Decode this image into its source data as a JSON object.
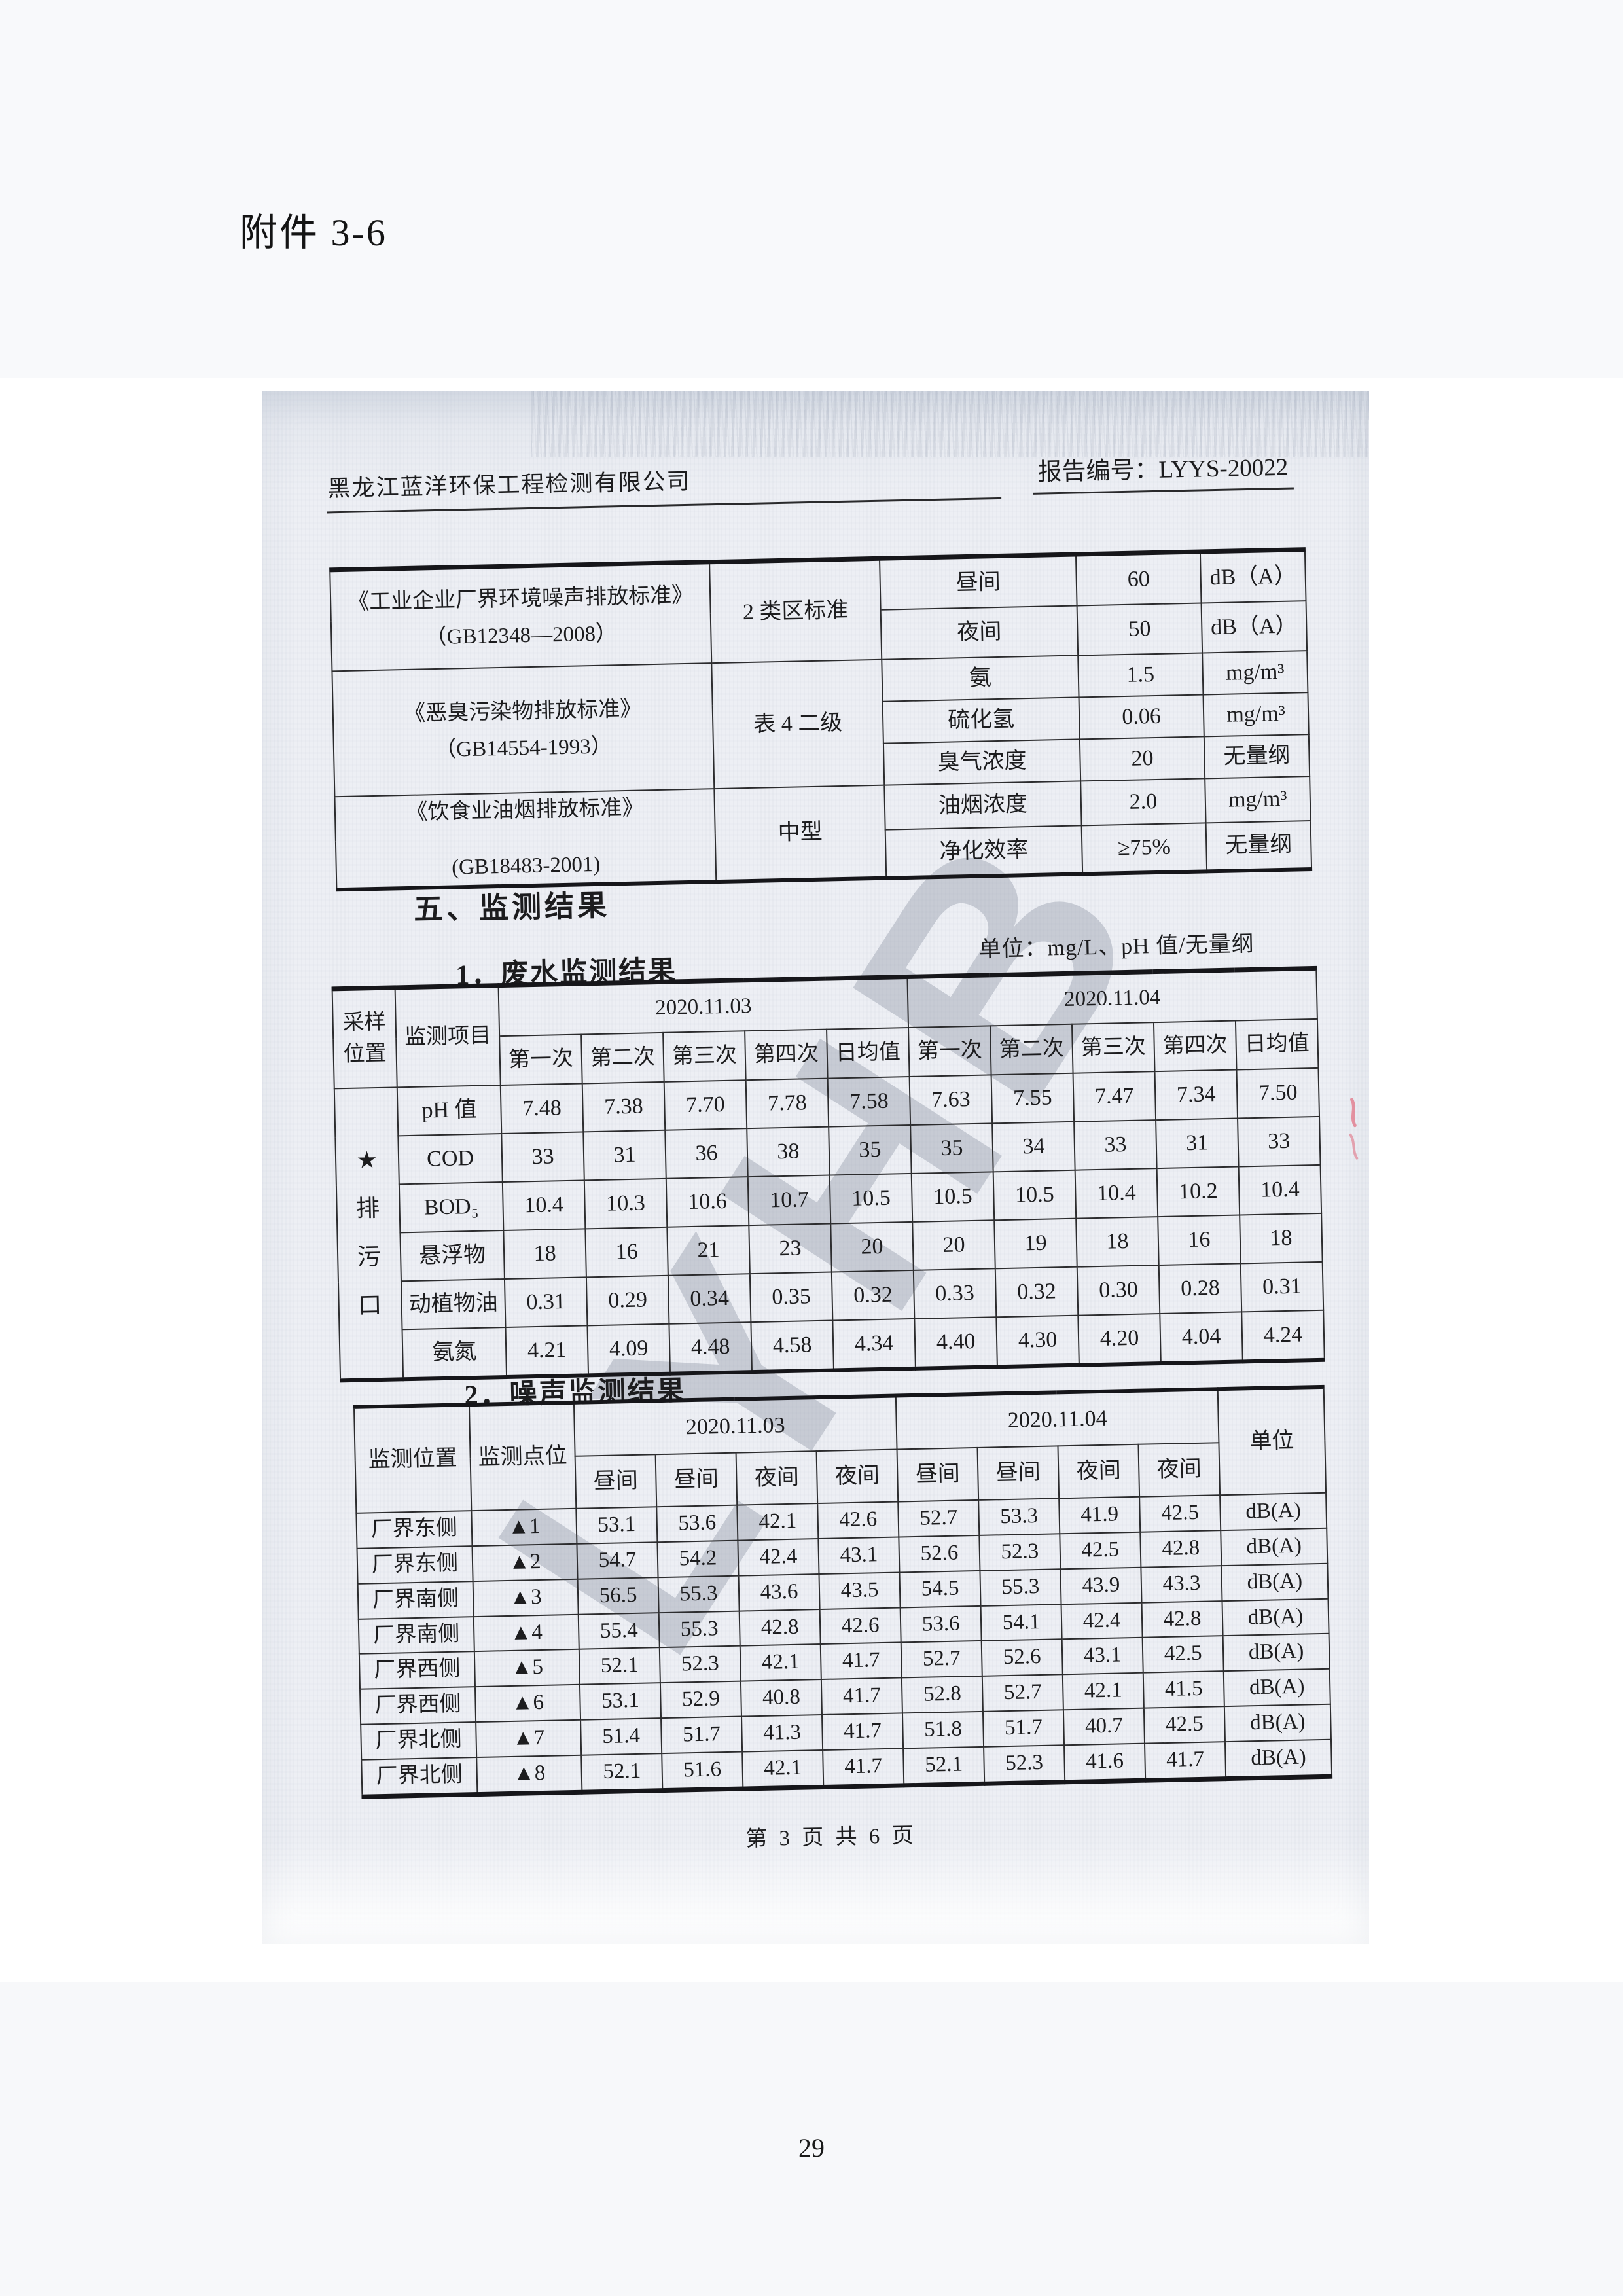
{
  "page": {
    "attachment_label": "附件 3-6",
    "page_number": "29"
  },
  "colors": {
    "scan_paper": "#edeff4",
    "watermark": "#8890a0",
    "red_pen_mark": "#e0556b",
    "ink": "#1c1c1e"
  },
  "scan": {
    "watermark": "LYHB",
    "header": {
      "company": "黑龙江蓝洋环保工程检测有限公司",
      "report_no": "报告编号：LYYS-20022"
    },
    "standards_table": {
      "rows": [
        [
          {
            "t": "《工业企业厂界环境噪声排放标准》\n（GB12348—2008）",
            "rs": 2,
            "cls": "std-name",
            "n": "standard-name"
          },
          {
            "t": "2 类区标准",
            "rs": 2
          },
          {
            "t": "昼间"
          },
          {
            "t": "60"
          },
          {
            "t": "dB（A）"
          }
        ],
        [
          {
            "t": "夜间"
          },
          {
            "t": "50"
          },
          {
            "t": "dB（A）"
          }
        ],
        [
          {
            "t": "《恶臭污染物排放标准》\n（GB14554-1993）",
            "rs": 3,
            "cls": "std-name",
            "n": "standard-name"
          },
          {
            "t": "表 4 二级",
            "rs": 3
          },
          {
            "t": "氨"
          },
          {
            "t": "1.5"
          },
          {
            "t": "mg/m³"
          }
        ],
        [
          {
            "t": "硫化氢"
          },
          {
            "t": "0.06"
          },
          {
            "t": "mg/m³"
          }
        ],
        [
          {
            "t": "臭气浓度"
          },
          {
            "t": "20"
          },
          {
            "t": "无量纲"
          }
        ],
        [
          {
            "t": "《饮食业油烟排放标准》\n\n(GB18483-2001)",
            "rs": 2,
            "cls": "std-name std-low",
            "n": "standard-name"
          },
          {
            "t": "中型",
            "rs": 2
          },
          {
            "t": "油烟浓度"
          },
          {
            "t": "2.0"
          },
          {
            "t": "mg/m³"
          }
        ],
        [
          {
            "t": "净化效率"
          },
          {
            "t": "≥75%"
          },
          {
            "t": "无量纲"
          }
        ]
      ]
    },
    "section_title": "五、监测结果",
    "wastewater": {
      "subtitle": "1．废水监测结果",
      "unit_note": "单位：mg/L、pH 值/无量纲",
      "table": {
        "rows": [
          [
            {
              "t": "采样\n位置",
              "rs": 2
            },
            {
              "t": "监测项目",
              "rs": 2
            },
            {
              "t": "2020.11.03",
              "cs": 5
            },
            {
              "t": "2020.11.04",
              "cs": 5
            }
          ],
          [
            {
              "t": "第一次"
            },
            {
              "t": "第二次"
            },
            {
              "t": "第三次"
            },
            {
              "t": "第四次"
            },
            {
              "t": "日均值"
            },
            {
              "t": "第一次"
            },
            {
              "t": "第二次"
            },
            {
              "t": "第三次"
            },
            {
              "t": "第四次"
            },
            {
              "t": "日均值"
            }
          ],
          [
            {
              "t": "★\n排\n污\n口",
              "rs": 6,
              "cls": "vcell",
              "n": "sampling-point-label"
            },
            {
              "t": "pH 值"
            },
            "7.48",
            "7.38",
            "7.70",
            "7.78",
            "7.58",
            "7.63",
            "7.55",
            "7.47",
            "7.34",
            "7.50"
          ],
          [
            {
              "t": "COD"
            },
            "33",
            "31",
            "36",
            "38",
            "35",
            "35",
            "34",
            "33",
            "31",
            "33"
          ],
          [
            {
              "t": "BOD₅"
            },
            "10.4",
            "10.3",
            "10.6",
            "10.7",
            "10.5",
            "10.5",
            "10.5",
            "10.4",
            "10.2",
            "10.4"
          ],
          [
            {
              "t": "悬浮物"
            },
            "18",
            "16",
            "21",
            "23",
            "20",
            "20",
            "19",
            "18",
            "16",
            "18"
          ],
          [
            {
              "t": "动植物油"
            },
            "0.31",
            "0.29",
            "0.34",
            "0.35",
            "0.32",
            "0.33",
            "0.32",
            "0.30",
            "0.28",
            "0.31"
          ],
          [
            {
              "t": "氨氮"
            },
            "4.21",
            "4.09",
            "4.48",
            "4.58",
            "4.34",
            "4.40",
            "4.30",
            "4.20",
            "4.04",
            "4.24"
          ]
        ]
      }
    },
    "noise": {
      "subtitle": "2．噪声监测结果",
      "table": {
        "rows": [
          [
            {
              "t": "监测位置",
              "rs": 2
            },
            {
              "t": "监测点位",
              "rs": 2
            },
            {
              "t": "2020.11.03",
              "cs": 4
            },
            {
              "t": "2020.11.04",
              "cs": 4
            },
            {
              "t": "单位",
              "rs": 2
            }
          ],
          [
            "昼间",
            "昼间",
            "夜间",
            "夜间",
            "昼间",
            "昼间",
            "夜间",
            "夜间"
          ],
          [
            "厂界东侧",
            "▲1",
            "53.1",
            "53.6",
            "42.1",
            "42.6",
            "52.7",
            "53.3",
            "41.9",
            "42.5",
            "dB(A)"
          ],
          [
            "厂界东侧",
            "▲2",
            "54.7",
            "54.2",
            "42.4",
            "43.1",
            "52.6",
            "52.3",
            "42.5",
            "42.8",
            "dB(A)"
          ],
          [
            "厂界南侧",
            "▲3",
            "56.5",
            "55.3",
            "43.6",
            "43.5",
            "54.5",
            "55.3",
            "43.9",
            "43.3",
            "dB(A)"
          ],
          [
            "厂界南侧",
            "▲4",
            "55.4",
            "55.3",
            "42.8",
            "42.6",
            "53.6",
            "54.1",
            "42.4",
            "42.8",
            "dB(A)"
          ],
          [
            "厂界西侧",
            "▲5",
            "52.1",
            "52.3",
            "42.1",
            "41.7",
            "52.7",
            "52.6",
            "43.1",
            "42.5",
            "dB(A)"
          ],
          [
            "厂界西侧",
            "▲6",
            "53.1",
            "52.9",
            "40.8",
            "41.7",
            "52.8",
            "52.7",
            "42.1",
            "41.5",
            "dB(A)"
          ],
          [
            "厂界北侧",
            "▲7",
            "51.4",
            "51.7",
            "41.3",
            "41.7",
            "51.8",
            "51.7",
            "40.7",
            "42.5",
            "dB(A)"
          ],
          [
            "厂界北侧",
            "▲8",
            "52.1",
            "51.6",
            "42.1",
            "41.7",
            "52.1",
            "52.3",
            "41.6",
            "41.7",
            "dB(A)"
          ]
        ]
      }
    },
    "footer": "第 3 页 共 6 页"
  }
}
